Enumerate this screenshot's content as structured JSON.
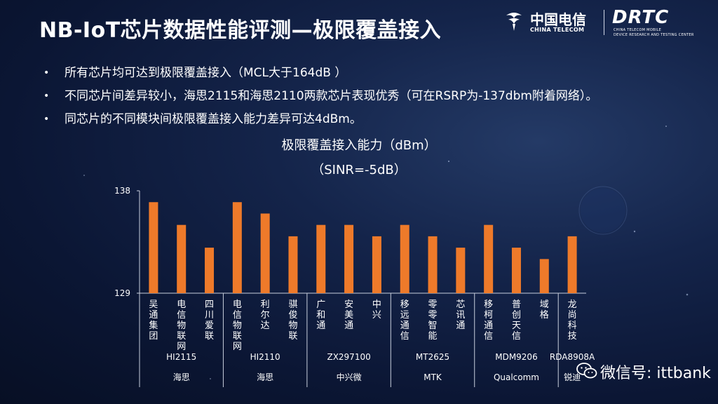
{
  "slide": {
    "title": "NB-IoT芯片数据性能评测—极限覆盖接入",
    "bullets": [
      "所有芯片均可达到极限覆盖接入（MCL大于164dB ）",
      "不同芯片间差异较小，海思2115和海思2110两款芯片表现优秀（可在RSRP为-137dbm附着网络）。",
      "同芯片的不同模块间极限覆盖接入能力差异可达4dBm。"
    ],
    "bullet_symbol": "•"
  },
  "logos": {
    "china_telecom_cn": "中国电信",
    "china_telecom_en": "CHINA TELECOM",
    "drtc": "DRTC",
    "drtc_sub1": "CHINA TELECOM MOBILE",
    "drtc_sub2": "DEVICE RESEARCH AND TESTING CENTER"
  },
  "watermark": {
    "text": "微信号: ittbank"
  },
  "colors": {
    "bar": "#ee7a2a",
    "axis": "#c8cfdd",
    "text": "#ffffff"
  },
  "chart_data": {
    "type": "bar",
    "title": "极限覆盖接入能力（dBm）",
    "subtitle": "（SINR=-5dB）",
    "ylim": [
      129,
      138
    ],
    "ytick_labels": [
      "138",
      "129"
    ],
    "categories": [
      "吴通集团",
      "电信物联网",
      "四川爱联",
      "电信物联网",
      "利尔达",
      "骐俊物联",
      "广和通",
      "安美通",
      "中兴",
      "移远通信",
      "零零智能",
      "芯讯通",
      "移柯通信",
      "普创天信",
      "域格",
      "龙尚科技"
    ],
    "values": [
      137,
      135,
      133,
      137,
      136,
      134,
      135,
      135,
      134,
      135,
      134,
      133,
      135,
      133,
      132,
      134
    ],
    "chip_groups": [
      {
        "chip": "HI2115",
        "vendor": "海思",
        "count": 3
      },
      {
        "chip": "HI2110",
        "vendor": "海思",
        "count": 3
      },
      {
        "chip": "ZX297100",
        "vendor": "中兴微",
        "count": 3
      },
      {
        "chip": "MT2625",
        "vendor": "MTK",
        "count": 3
      },
      {
        "chip": "MDM9206",
        "vendor": "Qualcomm",
        "count": 3
      },
      {
        "chip": "RDA8908A",
        "vendor": "锐迪",
        "count": 1
      }
    ],
    "legend": "none",
    "grid": false
  }
}
